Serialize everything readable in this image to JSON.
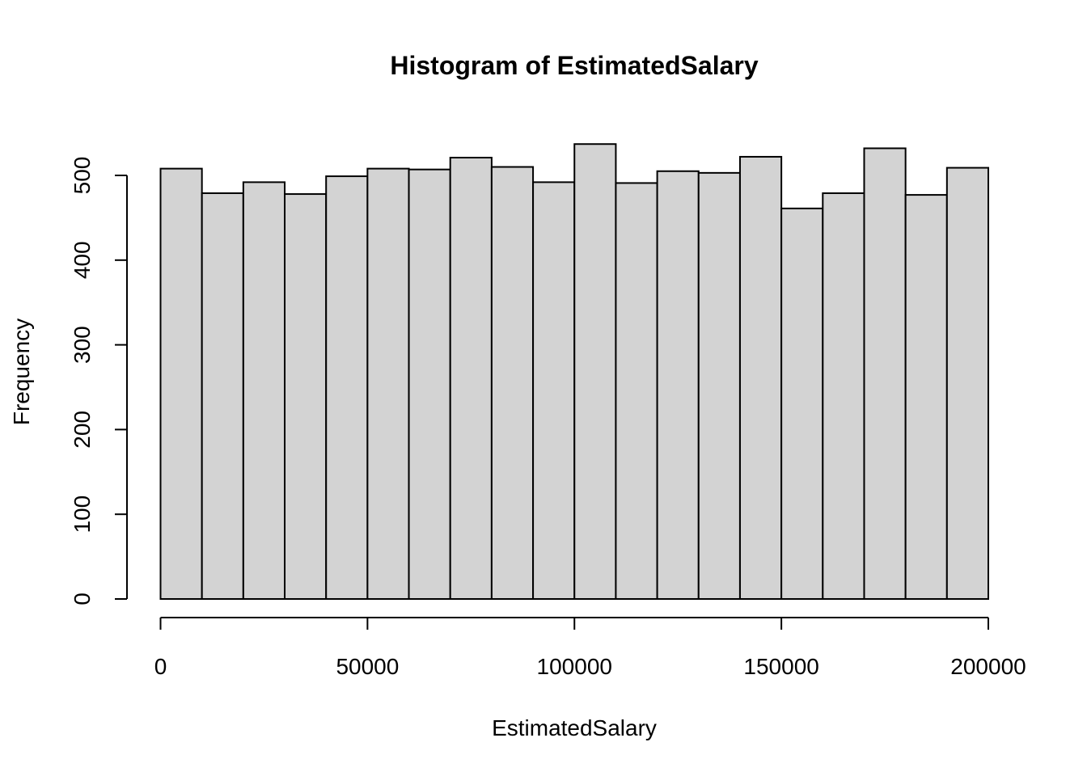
{
  "chart_data": {
    "type": "bar",
    "title": "Histogram of EstimatedSalary",
    "xlabel": "EstimatedSalary",
    "ylabel": "Frequency",
    "bins": [
      {
        "start": 0,
        "end": 10000,
        "count": 508
      },
      {
        "start": 10000,
        "end": 20000,
        "count": 479
      },
      {
        "start": 20000,
        "end": 30000,
        "count": 492
      },
      {
        "start": 30000,
        "end": 40000,
        "count": 478
      },
      {
        "start": 40000,
        "end": 50000,
        "count": 499
      },
      {
        "start": 50000,
        "end": 60000,
        "count": 508
      },
      {
        "start": 60000,
        "end": 70000,
        "count": 507
      },
      {
        "start": 70000,
        "end": 80000,
        "count": 521
      },
      {
        "start": 80000,
        "end": 90000,
        "count": 510
      },
      {
        "start": 90000,
        "end": 100000,
        "count": 492
      },
      {
        "start": 100000,
        "end": 110000,
        "count": 537
      },
      {
        "start": 110000,
        "end": 120000,
        "count": 491
      },
      {
        "start": 120000,
        "end": 130000,
        "count": 505
      },
      {
        "start": 130000,
        "end": 140000,
        "count": 503
      },
      {
        "start": 140000,
        "end": 150000,
        "count": 522
      },
      {
        "start": 150000,
        "end": 160000,
        "count": 461
      },
      {
        "start": 160000,
        "end": 170000,
        "count": 479
      },
      {
        "start": 170000,
        "end": 180000,
        "count": 532
      },
      {
        "start": 180000,
        "end": 190000,
        "count": 477
      },
      {
        "start": 190000,
        "end": 200000,
        "count": 509
      }
    ],
    "xlim": [
      0,
      200000
    ],
    "ylim": [
      0,
      537
    ],
    "x_ticks": [
      0,
      50000,
      100000,
      150000,
      200000
    ],
    "y_ticks": [
      0,
      100,
      200,
      300,
      400,
      500
    ],
    "grid": false,
    "bar_color": "#d3d3d3",
    "edge_color": "#000000"
  }
}
